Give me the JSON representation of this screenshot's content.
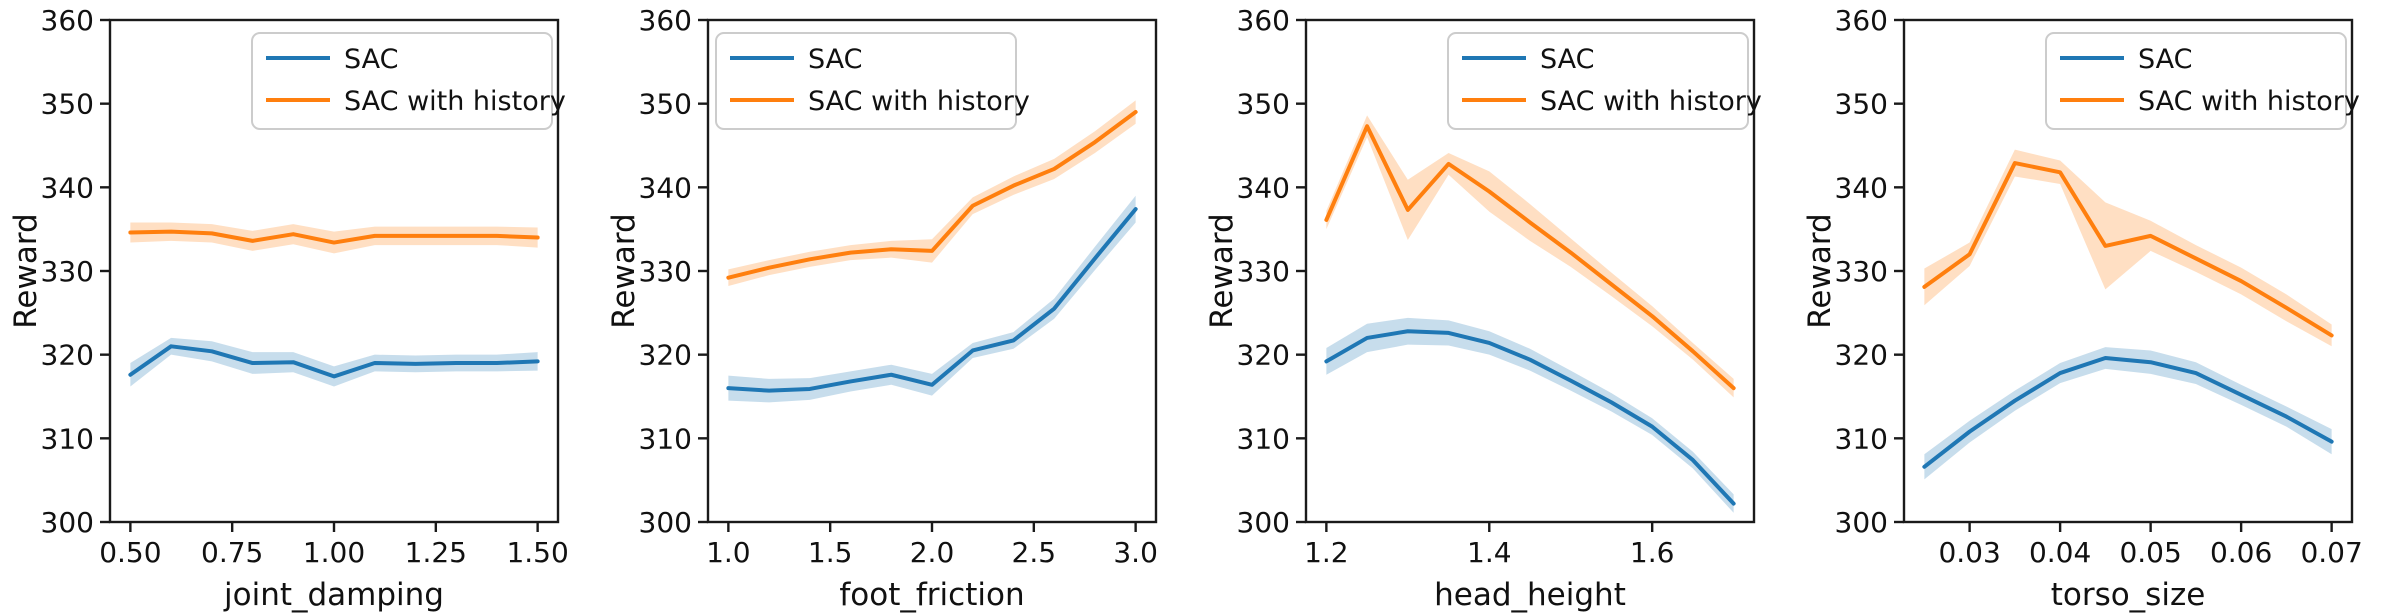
{
  "figure": {
    "ylabel": "Reward",
    "ylim": [
      300,
      360
    ],
    "yticks": [
      300,
      310,
      320,
      330,
      340,
      350,
      360
    ],
    "legend_labels": [
      "SAC",
      "SAC with history"
    ],
    "colors": {
      "sac_line": "#1f77b4",
      "sac_band": "rgba(31,119,180,0.25)",
      "history_line": "#ff7f0e",
      "history_band": "rgba(255,127,14,0.25)",
      "spine": "#1a1a1a",
      "legend_border": "#cccccc",
      "background": "#ffffff"
    }
  },
  "chart_data": [
    {
      "type": "line",
      "xlabel": "joint_damping",
      "ylabel": "Reward",
      "xlim": [
        0.45,
        1.55
      ],
      "ylim": [
        300,
        360
      ],
      "grid": false,
      "legend_loc": "upper right",
      "xticks": [
        0.5,
        0.75,
        1.0,
        1.25,
        1.5
      ],
      "xtick_labels": [
        "0.50",
        "0.75",
        "1.00",
        "1.25",
        "1.50"
      ],
      "x": [
        0.5,
        0.6,
        0.7,
        0.8,
        0.9,
        1.0,
        1.1,
        1.2,
        1.3,
        1.4,
        1.5
      ],
      "series": [
        {
          "name": "SAC",
          "values": [
            317.6,
            321.0,
            320.4,
            319.0,
            319.1,
            317.4,
            319.0,
            318.9,
            319.0,
            319.0,
            319.2
          ],
          "err": [
            1.4,
            1.0,
            1.2,
            1.3,
            1.2,
            1.2,
            1.0,
            1.0,
            1.0,
            1.0,
            1.1
          ]
        },
        {
          "name": "SAC with history",
          "values": [
            334.6,
            334.7,
            334.5,
            333.6,
            334.4,
            333.4,
            334.2,
            334.2,
            334.2,
            334.2,
            334.0
          ],
          "err": [
            1.2,
            1.1,
            1.1,
            1.2,
            1.2,
            1.3,
            1.1,
            1.1,
            1.1,
            1.1,
            1.2
          ]
        }
      ]
    },
    {
      "type": "line",
      "xlabel": "foot_friction",
      "ylabel": "Reward",
      "xlim": [
        0.9,
        3.1
      ],
      "ylim": [
        300,
        360
      ],
      "grid": false,
      "legend_loc": "upper left",
      "xticks": [
        1.0,
        1.5,
        2.0,
        2.5,
        3.0
      ],
      "xtick_labels": [
        "1.0",
        "1.5",
        "2.0",
        "2.5",
        "3.0"
      ],
      "x": [
        1.0,
        1.2,
        1.4,
        1.6,
        1.8,
        2.0,
        2.2,
        2.4,
        2.6,
        2.8,
        3.0
      ],
      "series": [
        {
          "name": "SAC",
          "values": [
            316.0,
            315.7,
            315.9,
            316.8,
            317.6,
            316.4,
            320.5,
            321.7,
            325.5,
            331.5,
            337.4
          ],
          "err": [
            1.5,
            1.4,
            1.3,
            1.2,
            1.2,
            1.3,
            0.9,
            1.0,
            1.2,
            1.4,
            1.6
          ]
        },
        {
          "name": "SAC with history",
          "values": [
            329.2,
            330.4,
            331.4,
            332.2,
            332.6,
            332.4,
            337.8,
            340.2,
            342.2,
            345.4,
            349.0
          ],
          "err": [
            1.0,
            0.9,
            0.9,
            0.9,
            1.0,
            1.4,
            1.0,
            1.1,
            1.2,
            1.3,
            1.4
          ]
        }
      ]
    },
    {
      "type": "line",
      "xlabel": "head_height",
      "ylabel": "Reward",
      "xlim": [
        1.175,
        1.725
      ],
      "ylim": [
        300,
        360
      ],
      "grid": false,
      "legend_loc": "upper right",
      "xticks": [
        1.2,
        1.4,
        1.6
      ],
      "xtick_labels": [
        "1.2",
        "1.4",
        "1.6"
      ],
      "x": [
        1.2,
        1.25,
        1.3,
        1.35,
        1.4,
        1.45,
        1.5,
        1.55,
        1.6,
        1.65,
        1.7
      ],
      "series": [
        {
          "name": "SAC",
          "values": [
            319.2,
            322.0,
            322.8,
            322.6,
            321.4,
            319.4,
            316.9,
            314.3,
            311.4,
            307.4,
            302.2
          ],
          "err": [
            1.6,
            1.7,
            1.6,
            1.5,
            1.4,
            1.3,
            1.2,
            1.1,
            1.0,
            1.0,
            1.1
          ]
        },
        {
          "name": "SAC with history",
          "values": [
            336.1,
            347.3,
            337.3,
            342.8,
            339.5,
            335.8,
            332.2,
            328.4,
            324.6,
            320.4,
            316.0
          ],
          "err": [
            1.1,
            1.3,
            3.6,
            1.3,
            2.4,
            2.2,
            1.7,
            1.4,
            1.2,
            1.0,
            1.1
          ]
        }
      ]
    },
    {
      "type": "line",
      "xlabel": "torso_size",
      "ylabel": "Reward",
      "xlim": [
        0.02275,
        0.07225
      ],
      "ylim": [
        300,
        360
      ],
      "grid": false,
      "legend_loc": "upper right",
      "xticks": [
        0.03,
        0.04,
        0.05,
        0.06,
        0.07
      ],
      "xtick_labels": [
        "0.03",
        "0.04",
        "0.05",
        "0.06",
        "0.07"
      ],
      "x": [
        0.025,
        0.03,
        0.035,
        0.04,
        0.045,
        0.05,
        0.055,
        0.06,
        0.065,
        0.07
      ],
      "series": [
        {
          "name": "SAC",
          "values": [
            306.6,
            310.8,
            314.5,
            317.8,
            319.6,
            319.1,
            317.8,
            315.2,
            312.6,
            309.6
          ],
          "err": [
            1.5,
            1.3,
            1.2,
            1.2,
            1.3,
            1.4,
            1.3,
            1.2,
            1.2,
            1.5
          ]
        },
        {
          "name": "SAC with history",
          "values": [
            328.1,
            332.0,
            342.9,
            341.8,
            333.0,
            334.2,
            331.5,
            328.8,
            325.6,
            322.3
          ],
          "err": [
            2.2,
            1.4,
            1.6,
            1.4,
            5.2,
            1.8,
            1.6,
            1.6,
            1.6,
            1.3
          ]
        }
      ]
    }
  ]
}
